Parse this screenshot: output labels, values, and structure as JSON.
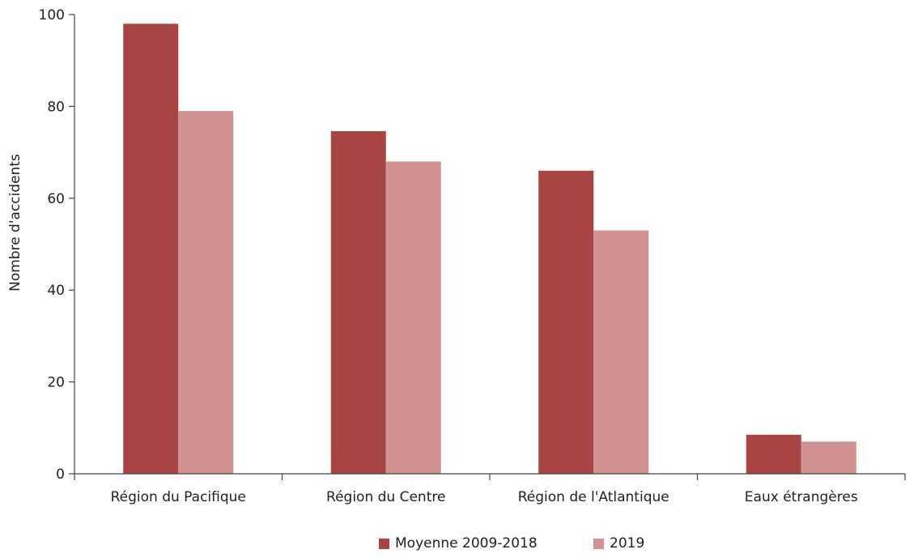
{
  "chart_data": {
    "type": "bar",
    "title": "",
    "xlabel": "",
    "ylabel": "Nombre d'accidents",
    "categories": [
      "Région du Pacifique",
      "Région du Centre",
      "Région de l'Atlantique",
      "Eaux étrangères"
    ],
    "series": [
      {
        "name": "Moyenne 2009-2018",
        "values": [
          98,
          74.6,
          66,
          8.5
        ],
        "color": "#a84442"
      },
      {
        "name": "2019",
        "values": [
          79,
          68,
          53,
          7
        ],
        "color": "#d39292"
      }
    ],
    "ylim": [
      0,
      100
    ],
    "yticks": [
      0,
      20,
      40,
      60,
      80,
      100
    ],
    "grid": false,
    "legend_position": "bottom"
  }
}
